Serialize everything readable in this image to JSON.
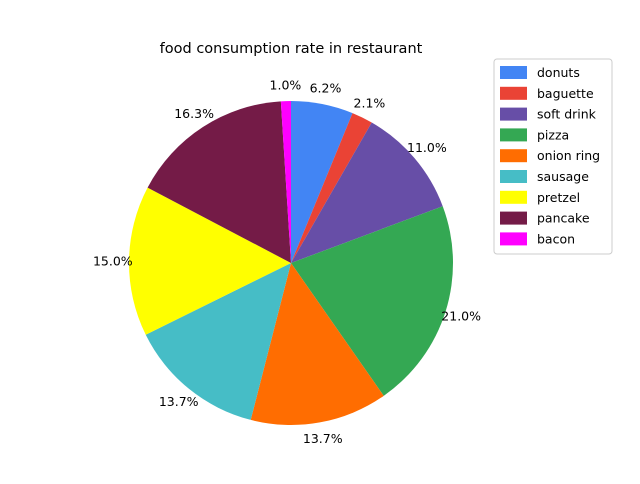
{
  "chart_data": {
    "type": "pie",
    "title": "food consumption rate in restaurant",
    "autopct_format": "1 decimal, percent",
    "start_angle_deg": 90,
    "direction": "clockwise",
    "legend_position": "upper right, outside plot",
    "slices": [
      {
        "label": "donuts",
        "value": 6.2,
        "pct_label": "6.2%",
        "color": "#4285F4"
      },
      {
        "label": "baguette",
        "value": 2.1,
        "pct_label": "2.1%",
        "color": "#EA4335"
      },
      {
        "label": "soft drink",
        "value": 11.0,
        "pct_label": "11.0%",
        "color": "#674EA7"
      },
      {
        "label": "pizza",
        "value": 21.0,
        "pct_label": "21.0%",
        "color": "#34A853"
      },
      {
        "label": "onion ring",
        "value": 13.7,
        "pct_label": "13.7%",
        "color": "#FF6D01"
      },
      {
        "label": "sausage",
        "value": 13.7,
        "pct_label": "13.7%",
        "color": "#46BDC6"
      },
      {
        "label": "pretzel",
        "value": 15.0,
        "pct_label": "15.0%",
        "color": "#FFFF00"
      },
      {
        "label": "pancake",
        "value": 16.3,
        "pct_label": "16.3%",
        "color": "#741B47"
      },
      {
        "label": "bacon",
        "value": 1.0,
        "pct_label": "1.0%",
        "color": "#FF00FF"
      }
    ]
  }
}
